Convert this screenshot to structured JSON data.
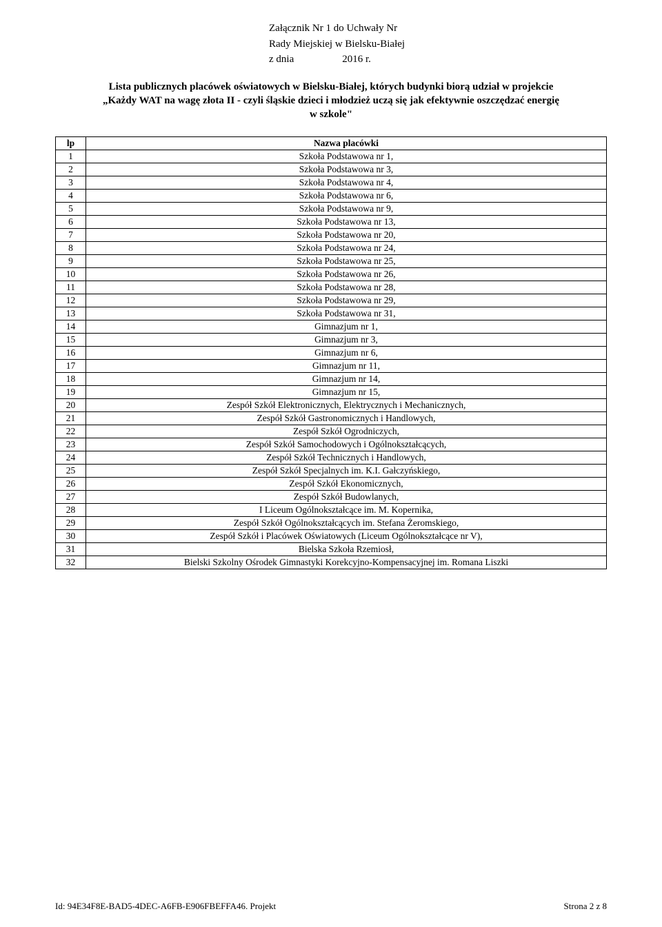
{
  "header": {
    "line1": "Załącznik Nr 1 do Uchwały Nr",
    "line2": "Rady Miejskiej w Bielsku-Białej",
    "line3_left": "z dnia",
    "line3_right": "2016 r."
  },
  "title": {
    "line1": "Lista publicznych placówek oświatowych w Bielsku-Białej, których budynki biorą udział w projekcie",
    "line2": "„Każdy WAT na wagę złota II - czyli śląskie dzieci i młodzież uczą się jak efektywnie oszczędzać energię",
    "line3": "w szkole\""
  },
  "table": {
    "headers": {
      "lp": "lp",
      "name": "Nazwa placówki"
    },
    "rows": [
      {
        "lp": "1",
        "name": "Szkoła Podstawowa nr 1,"
      },
      {
        "lp": "2",
        "name": "Szkoła Podstawowa nr 3,"
      },
      {
        "lp": "3",
        "name": "Szkoła Podstawowa nr 4,"
      },
      {
        "lp": "4",
        "name": "Szkoła Podstawowa nr 6,"
      },
      {
        "lp": "5",
        "name": "Szkoła Podstawowa nr 9,"
      },
      {
        "lp": "6",
        "name": "Szkoła Podstawowa nr 13,"
      },
      {
        "lp": "7",
        "name": "Szkoła Podstawowa nr 20,"
      },
      {
        "lp": "8",
        "name": "Szkoła Podstawowa nr 24,"
      },
      {
        "lp": "9",
        "name": "Szkoła Podstawowa nr 25,"
      },
      {
        "lp": "10",
        "name": "Szkoła Podstawowa nr 26,"
      },
      {
        "lp": "11",
        "name": "Szkoła Podstawowa nr 28,"
      },
      {
        "lp": "12",
        "name": "Szkoła Podstawowa nr 29,"
      },
      {
        "lp": "13",
        "name": "Szkoła Podstawowa nr 31,"
      },
      {
        "lp": "14",
        "name": "Gimnazjum nr 1,"
      },
      {
        "lp": "15",
        "name": "Gimnazjum nr 3,"
      },
      {
        "lp": "16",
        "name": "Gimnazjum nr 6,"
      },
      {
        "lp": "17",
        "name": "Gimnazjum nr 11,"
      },
      {
        "lp": "18",
        "name": "Gimnazjum nr 14,"
      },
      {
        "lp": "19",
        "name": "Gimnazjum nr 15,"
      },
      {
        "lp": "20",
        "name": "Zespół Szkół Elektronicznych, Elektrycznych i Mechanicznych,"
      },
      {
        "lp": "21",
        "name": "Zespół Szkół Gastronomicznych i Handlowych,"
      },
      {
        "lp": "22",
        "name": "Zespół Szkół Ogrodniczych,"
      },
      {
        "lp": "23",
        "name": "Zespół Szkół Samochodowych i Ogólnokształcących,"
      },
      {
        "lp": "24",
        "name": "Zespół Szkół Technicznych i Handlowych,"
      },
      {
        "lp": "25",
        "name": "Zespół Szkół Specjalnych im. K.I. Gałczyńskiego,"
      },
      {
        "lp": "26",
        "name": "Zespół Szkół Ekonomicznych,"
      },
      {
        "lp": "27",
        "name": "Zespół Szkół Budowlanych,"
      },
      {
        "lp": "28",
        "name": "I Liceum Ogólnokształcące im. M. Kopernika,"
      },
      {
        "lp": "29",
        "name": "Zespół Szkół Ogólnokształcących im. Stefana Żeromskiego,"
      },
      {
        "lp": "30",
        "name": "Zespół Szkół i Placówek Oświatowych (Liceum Ogólnokształcące nr V),"
      },
      {
        "lp": "31",
        "name": "Bielska Szkoła Rzemiosł,"
      },
      {
        "lp": "32",
        "name": "Bielski Szkolny Ośrodek Gimnastyki Korekcyjno-Kompensacyjnej im. Romana Liszki"
      }
    ]
  },
  "footer": {
    "left": "Id: 94E34F8E-BAD5-4DEC-A6FB-E906FBEFFA46. Projekt",
    "right": "Strona 2 z 8"
  }
}
